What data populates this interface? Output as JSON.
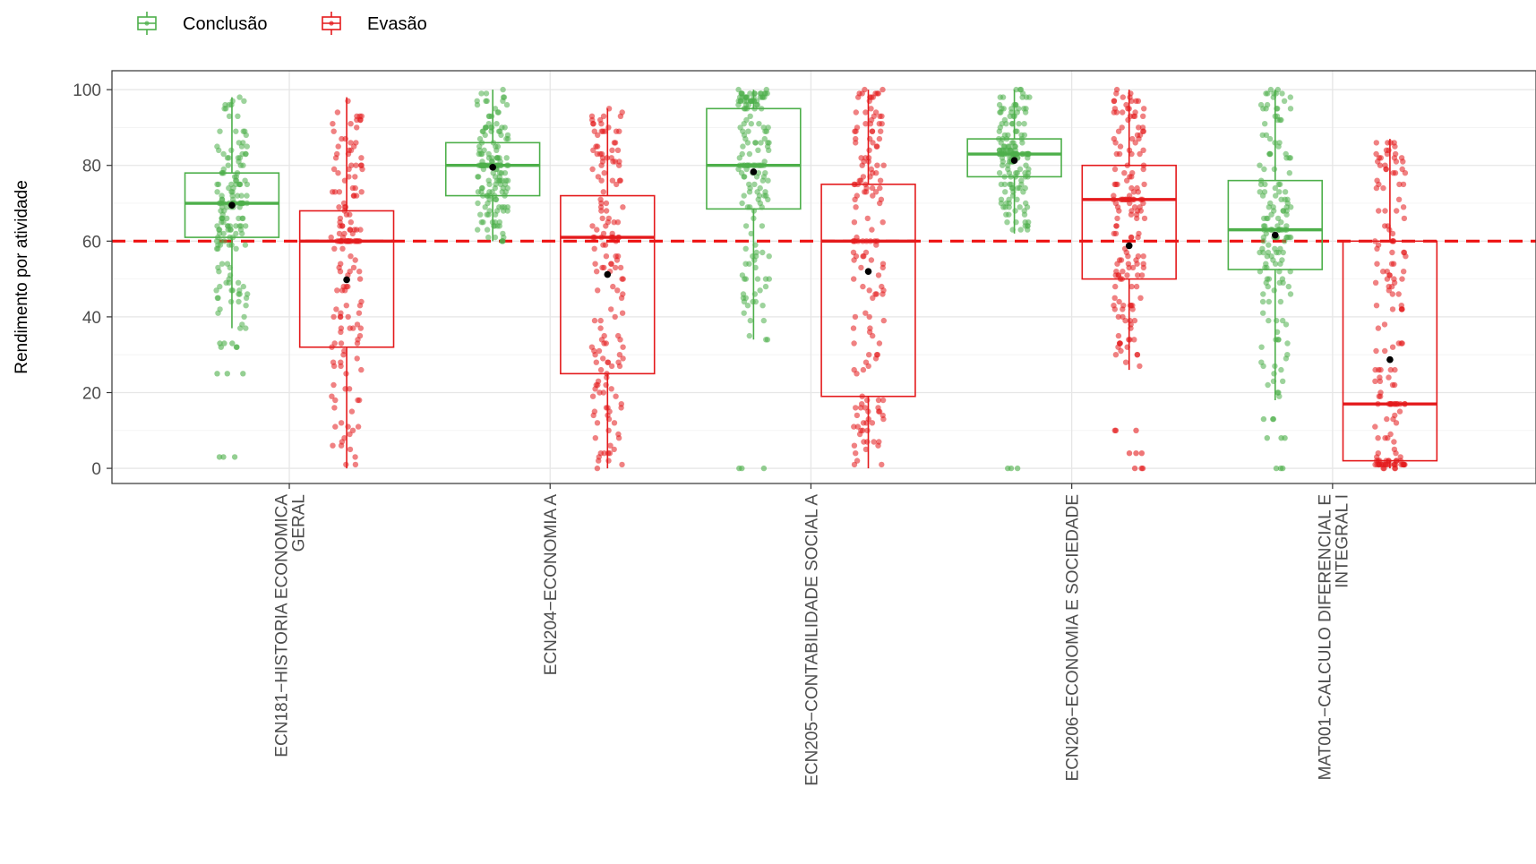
{
  "chart_data": {
    "type": "boxplot",
    "ylabel": "Rendimento por atividade",
    "xlabel": "",
    "ylim": [
      -4,
      105
    ],
    "yticks": [
      0,
      20,
      40,
      60,
      80,
      100
    ],
    "grid": true,
    "legend_position": "top-left",
    "reference_line": {
      "y": 60,
      "style": "dashed",
      "color": "#ee1111"
    },
    "categories": [
      [
        "ECN181−HISTORIA ECONOMICA",
        "GERAL"
      ],
      [
        "ECN204−ECONOMIA A"
      ],
      [
        "ECN205−CONTABILIDADE SOCIAL A"
      ],
      [
        "ECN206−ECONOMIA E SOCIEDADE"
      ],
      [
        "MAT001−CALCULO DIFERENCIAL E",
        "INTEGRAL I"
      ]
    ],
    "series": [
      {
        "name": "Conclusão",
        "color": "#4daf4a",
        "boxes": [
          {
            "q1": 61,
            "median": 70,
            "q3": 78,
            "lower": 37,
            "upper": 98,
            "mean": 69.5,
            "outliers": [
              32,
              33,
              25,
              3
            ]
          },
          {
            "q1": 72,
            "median": 80,
            "q3": 86,
            "lower": 60,
            "upper": 100,
            "mean": 79.5,
            "outliers": []
          },
          {
            "q1": 68.5,
            "median": 80,
            "q3": 95,
            "lower": 34,
            "upper": 100,
            "mean": 78.3,
            "outliers": [
              0
            ]
          },
          {
            "q1": 77,
            "median": 83,
            "q3": 87,
            "lower": 62,
            "upper": 100,
            "mean": 81.3,
            "outliers": [
              0
            ]
          },
          {
            "q1": 52.5,
            "median": 63,
            "q3": 76,
            "lower": 18,
            "upper": 100,
            "mean": 61.6,
            "outliers": [
              13,
              8,
              0
            ]
          }
        ]
      },
      {
        "name": "Evasão",
        "color": "#e41a1c",
        "boxes": [
          {
            "q1": 32,
            "median": 60,
            "q3": 68,
            "lower": 0,
            "upper": 98,
            "mean": 49.8,
            "outliers": []
          },
          {
            "q1": 25,
            "median": 61,
            "q3": 72,
            "lower": 0,
            "upper": 95,
            "mean": 51.2,
            "outliers": []
          },
          {
            "q1": 19,
            "median": 60,
            "q3": 75,
            "lower": 0,
            "upper": 100,
            "mean": 52,
            "outliers": []
          },
          {
            "q1": 50,
            "median": 71,
            "q3": 80,
            "lower": 26,
            "upper": 100,
            "mean": 58.8,
            "outliers": [
              0,
              4,
              10
            ]
          },
          {
            "q1": 2,
            "median": 17,
            "q3": 60,
            "lower": 0,
            "upper": 87,
            "mean": 28.7,
            "outliers": []
          }
        ]
      }
    ]
  }
}
